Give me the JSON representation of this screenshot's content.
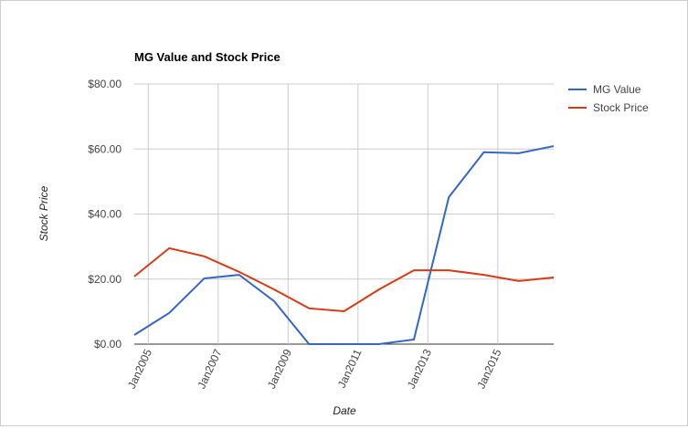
{
  "chart_data": {
    "type": "line",
    "title": "MG Value and Stock Price",
    "x_label": "Date",
    "y_label": "Stock Price",
    "x": [
      2004.6,
      2005.6,
      2006.6,
      2007.6,
      2008.6,
      2009.6,
      2010.6,
      2011.6,
      2012.6,
      2013.6,
      2014.6,
      2015.6,
      2016.6
    ],
    "series": [
      {
        "name": "MG Value",
        "color": "#3366cc",
        "values": [
          2.8,
          9.6,
          20.2,
          21.3,
          13.2,
          0,
          0,
          0,
          1.4,
          45.2,
          59,
          58.7,
          60.9
        ]
      },
      {
        "name": "Stock Price",
        "color": "#dc3912",
        "values": [
          20.8,
          29.5,
          27,
          22.2,
          16.8,
          11,
          10.1,
          16.8,
          22.7,
          22.7,
          21.3,
          19.4,
          20.5
        ]
      }
    ],
    "xlim": [
      2004.6,
      2016.6
    ],
    "xticks": [
      {
        "value": 2005,
        "label": "Jan2005"
      },
      {
        "value": 2007,
        "label": "Jan2007"
      },
      {
        "value": 2009,
        "label": "Jan2009"
      },
      {
        "value": 2011,
        "label": "Jan2011"
      },
      {
        "value": 2013,
        "label": "Jan2013"
      },
      {
        "value": 2015,
        "label": "Jan2015"
      }
    ],
    "ylim": [
      0,
      80
    ],
    "yticks": [
      {
        "value": 0,
        "label": "$0.00"
      },
      {
        "value": 20,
        "label": "$20.00"
      },
      {
        "value": 40,
        "label": "$40.00"
      },
      {
        "value": 60,
        "label": "$60.00"
      },
      {
        "value": 80,
        "label": "$80.00"
      }
    ],
    "grid": true,
    "legend": "right"
  }
}
